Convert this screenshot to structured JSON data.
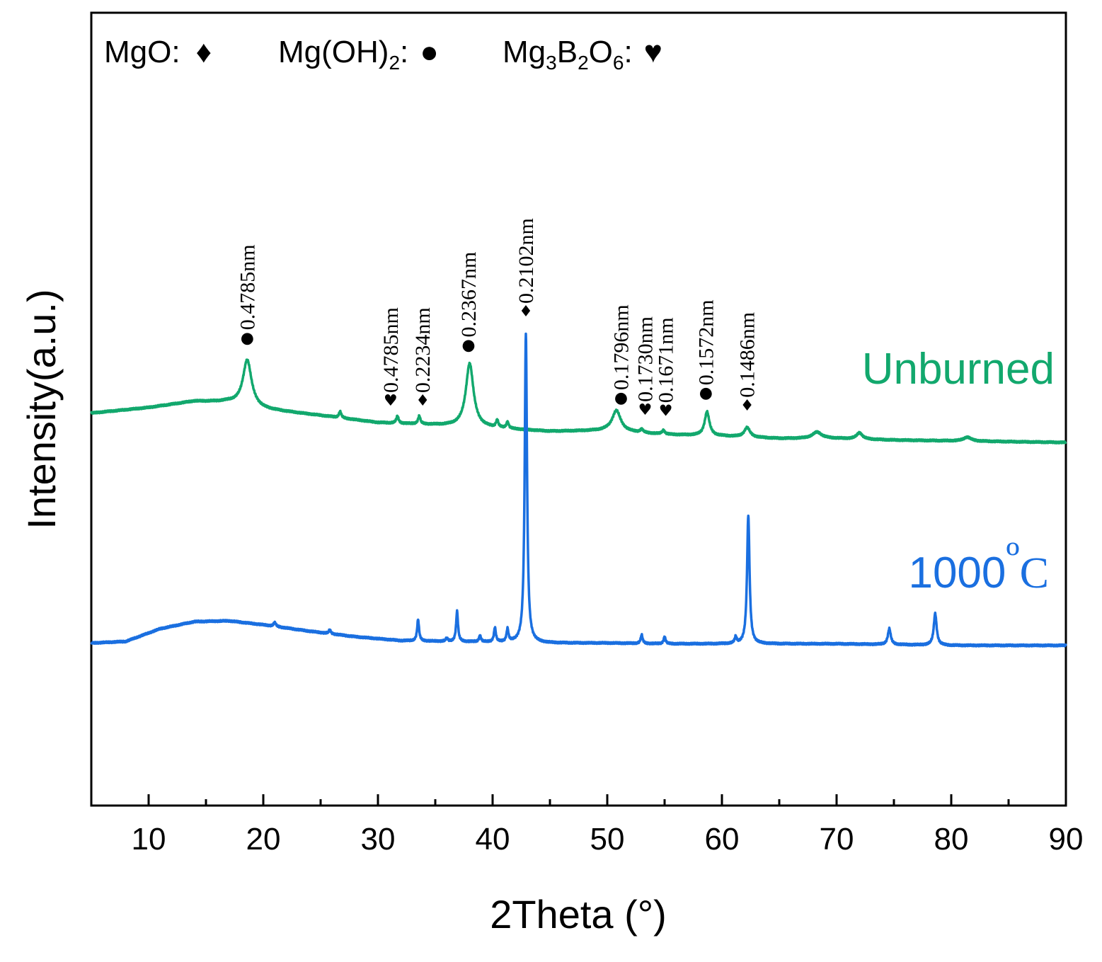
{
  "chart_data": {
    "type": "line",
    "xlabel": "2Theta (°)",
    "ylabel": "Intensity(a.u.)",
    "xlim": [
      5,
      90
    ],
    "ylim": [
      0,
      100
    ],
    "xticks": [
      "10",
      "20",
      "30",
      "40",
      "50",
      "60",
      "70",
      "80",
      "90"
    ],
    "legend": {
      "position": "top-left",
      "entries": [
        {
          "name": "MgO:",
          "marker": "♦",
          "marker_name": "diamond"
        },
        {
          "name": "Mg(OH)",
          "sub": "2",
          "tail": ":",
          "marker": "●",
          "marker_name": "circle"
        },
        {
          "name": "Mg",
          "sub1": "3",
          "mid1": "B",
          "sub2": "2",
          "mid2": "O",
          "sub3": "6",
          "tail": ":",
          "marker": "♥",
          "marker_name": "heart"
        }
      ]
    },
    "series": [
      {
        "name": "Unburned",
        "color": "#12a86d",
        "baseline": [
          [
            5,
            49.5
          ],
          [
            10,
            50.2
          ],
          [
            14,
            51.0
          ],
          [
            17,
            50.9
          ],
          [
            20,
            50.0
          ],
          [
            25,
            49.2
          ],
          [
            30,
            48.3
          ],
          [
            35,
            48.0
          ],
          [
            40,
            47.6
          ],
          [
            45,
            47.2
          ],
          [
            50,
            47.3
          ],
          [
            55,
            46.8
          ],
          [
            60,
            46.6
          ],
          [
            65,
            46.3
          ],
          [
            70,
            46.3
          ],
          [
            75,
            46.1
          ],
          [
            80,
            46.0
          ],
          [
            85,
            45.9
          ],
          [
            90,
            45.8
          ]
        ],
        "peaks": [
          {
            "x": 18.6,
            "h": 5.8,
            "w": 0.45
          },
          {
            "x": 26.7,
            "h": 0.8,
            "w": 0.12
          },
          {
            "x": 31.7,
            "h": 0.9,
            "w": 0.12
          },
          {
            "x": 33.6,
            "h": 1.0,
            "w": 0.12
          },
          {
            "x": 38.0,
            "h": 8.0,
            "w": 0.4
          },
          {
            "x": 40.4,
            "h": 0.9,
            "w": 0.12
          },
          {
            "x": 41.3,
            "h": 0.8,
            "w": 0.12
          },
          {
            "x": 50.8,
            "h": 2.6,
            "w": 0.45
          },
          {
            "x": 53.0,
            "h": 0.4,
            "w": 0.15
          },
          {
            "x": 54.9,
            "h": 0.5,
            "w": 0.15
          },
          {
            "x": 58.7,
            "h": 3.0,
            "w": 0.25
          },
          {
            "x": 62.2,
            "h": 1.2,
            "w": 0.3
          },
          {
            "x": 68.3,
            "h": 0.8,
            "w": 0.5
          },
          {
            "x": 72.0,
            "h": 0.8,
            "w": 0.3
          },
          {
            "x": 81.4,
            "h": 0.5,
            "w": 0.4
          }
        ]
      },
      {
        "name": "1000ºC",
        "color": "#1a6fe0",
        "baseline": [
          [
            5,
            20.5
          ],
          [
            8,
            20.7
          ],
          [
            11,
            22.3
          ],
          [
            14,
            23.2
          ],
          [
            17,
            23.3
          ],
          [
            20,
            22.8
          ],
          [
            24,
            22.0
          ],
          [
            28,
            21.3
          ],
          [
            32,
            20.8
          ],
          [
            36,
            20.7
          ],
          [
            40,
            20.6
          ],
          [
            45,
            20.5
          ],
          [
            50,
            20.5
          ],
          [
            55,
            20.4
          ],
          [
            60,
            20.4
          ],
          [
            65,
            20.4
          ],
          [
            70,
            20.4
          ],
          [
            75,
            20.3
          ],
          [
            80,
            20.2
          ],
          [
            85,
            20.2
          ],
          [
            90,
            20.2
          ]
        ],
        "peaks": [
          {
            "x": 21.0,
            "h": 0.5,
            "w": 0.12
          },
          {
            "x": 25.8,
            "h": 0.5,
            "w": 0.1
          },
          {
            "x": 33.5,
            "h": 2.7,
            "w": 0.1
          },
          {
            "x": 36.0,
            "h": 0.4,
            "w": 0.1
          },
          {
            "x": 36.9,
            "h": 3.8,
            "w": 0.1
          },
          {
            "x": 38.9,
            "h": 0.8,
            "w": 0.1
          },
          {
            "x": 40.2,
            "h": 1.8,
            "w": 0.1
          },
          {
            "x": 41.3,
            "h": 1.6,
            "w": 0.1
          },
          {
            "x": 42.9,
            "h": 39.0,
            "w": 0.12
          },
          {
            "x": 53.0,
            "h": 1.1,
            "w": 0.1
          },
          {
            "x": 55.0,
            "h": 0.9,
            "w": 0.1
          },
          {
            "x": 61.2,
            "h": 0.8,
            "w": 0.1
          },
          {
            "x": 62.3,
            "h": 16.2,
            "w": 0.13
          },
          {
            "x": 74.6,
            "h": 2.0,
            "w": 0.15
          },
          {
            "x": 78.6,
            "h": 4.0,
            "w": 0.15
          }
        ]
      }
    ],
    "series_labels": [
      {
        "text": "Unburned",
        "series": 0
      },
      {
        "text": "1000",
        "degree": "º",
        "unit": "C",
        "series": 1
      }
    ],
    "annotations": [
      {
        "x": 18.6,
        "marker": "●",
        "label": "0.4785nm"
      },
      {
        "x": 31.1,
        "marker": "♥",
        "label": "0.4785nm"
      },
      {
        "x": 33.9,
        "marker": "♦",
        "label": "0.2234nm"
      },
      {
        "x": 37.9,
        "marker": "●",
        "label": "0.2367nm"
      },
      {
        "x": 42.9,
        "marker": "♦",
        "label": "0.2102nm"
      },
      {
        "x": 51.2,
        "marker": "●",
        "label": "0.1796nm"
      },
      {
        "x": 53.3,
        "marker": "♥",
        "label": "0.1730nm"
      },
      {
        "x": 55.1,
        "marker": "♥",
        "label": "0.1671nm"
      },
      {
        "x": 58.6,
        "marker": "●",
        "label": "0.1572nm"
      },
      {
        "x": 62.2,
        "marker": "♦",
        "label": "0.1486nm"
      }
    ]
  }
}
